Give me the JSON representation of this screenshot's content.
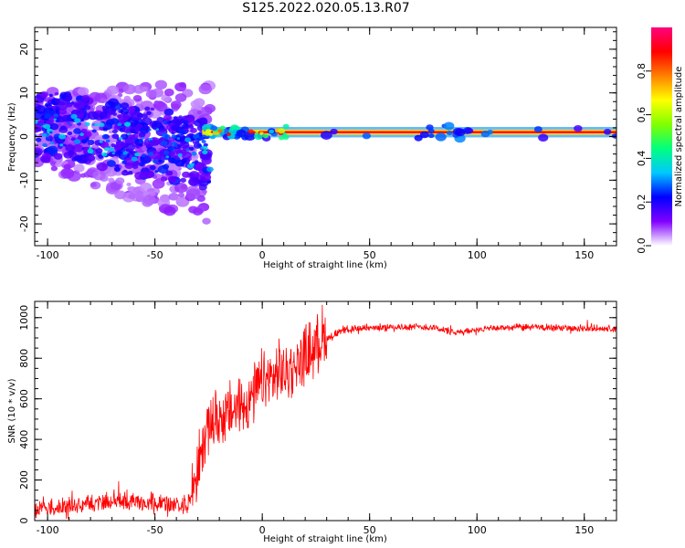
{
  "title": "S125.2022.020.05.13.R07",
  "chart_data": [
    {
      "type": "heatmap",
      "title": "S125.2022.020.05.13.R07",
      "xlabel": "Height of straight line (km)",
      "ylabel": "Frequency (Hz)",
      "xlim": [
        -106,
        165
      ],
      "ylim": [
        -25,
        25
      ],
      "x_ticks": [
        -100,
        -50,
        0,
        50,
        100,
        150
      ],
      "y_ticks": [
        -20,
        -10,
        0,
        10,
        20
      ],
      "colorbar": {
        "label": "Normalized spectral amplitude",
        "range": [
          0,
          1
        ],
        "ticks": [
          "0.0",
          "0.2",
          "0.4",
          "0.6",
          "0.8"
        ],
        "tick_values": [
          0.0,
          0.2,
          0.4,
          0.6,
          0.8
        ],
        "colormap": [
          "#ffffff",
          "#8000ff",
          "#0000ff",
          "#00c8ff",
          "#00ff80",
          "#80ff00",
          "#ffff00",
          "#ff8000",
          "#ff0000",
          "#ff0080"
        ]
      },
      "description_values": {
        "carrier_frequency_hz": 1,
        "carrier_start_height_km": -30,
        "scatter_region_height_km": [
          -106,
          -25
        ],
        "scatter_frequency_spread_hz": [
          -15,
          12
        ],
        "tone_segments": [
          {
            "x0": -28,
            "x1": 165,
            "amplitude": 0.9
          },
          {
            "x0": 75,
            "x1": 98,
            "amplitude": 0.35
          },
          {
            "x0": -40,
            "x1": 5,
            "amplitude": 0.5
          }
        ]
      }
    },
    {
      "type": "line",
      "xlabel": "Height of straight line (km)",
      "ylabel": "SNR (10 * v/v)",
      "xlim": [
        -106,
        165
      ],
      "ylim": [
        0,
        1080
      ],
      "x_ticks": [
        -100,
        -50,
        0,
        50,
        100,
        150
      ],
      "y_ticks": [
        0,
        200,
        400,
        600,
        800,
        1000
      ],
      "color": "#ff0000",
      "envelope": {
        "x": [
          -106,
          -90,
          -70,
          -50,
          -35,
          -32,
          -25,
          -15,
          -5,
          0,
          10,
          20,
          30,
          40,
          60,
          80,
          90,
          100,
          120,
          140,
          165
        ],
        "y": [
          40,
          60,
          80,
          70,
          60,
          150,
          450,
          500,
          580,
          650,
          700,
          780,
          900,
          940,
          950,
          950,
          920,
          940,
          950,
          945,
          940
        ]
      }
    }
  ]
}
